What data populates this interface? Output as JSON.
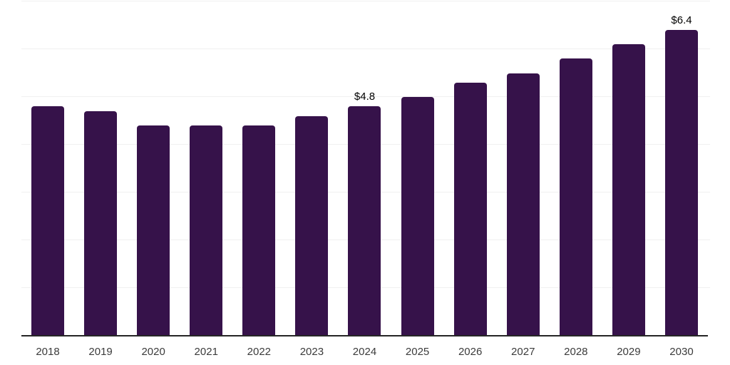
{
  "chart_data": {
    "type": "bar",
    "title": "",
    "xlabel": "",
    "ylabel": "",
    "categories": [
      "2018",
      "2019",
      "2020",
      "2021",
      "2022",
      "2023",
      "2024",
      "2025",
      "2026",
      "2027",
      "2028",
      "2029",
      "2030"
    ],
    "values": [
      4.8,
      4.7,
      4.4,
      4.4,
      4.4,
      4.6,
      4.8,
      5.0,
      5.3,
      5.5,
      5.8,
      6.1,
      6.4
    ],
    "data_labels": [
      {
        "category": "2024",
        "text": "$4.8"
      },
      {
        "category": "2030",
        "text": "$6.4"
      }
    ],
    "ylim": [
      0,
      7
    ],
    "grid": {
      "horizontal": true,
      "interval": 1,
      "y_tick_labels_visible": false
    },
    "legend": "none",
    "colors": {
      "bar": "#36124a",
      "gridline": "#f0f0f0",
      "axis_line": "#262626",
      "tick_label": "#3b3b3b",
      "data_label": "#000000",
      "background": "#ffffff"
    }
  }
}
